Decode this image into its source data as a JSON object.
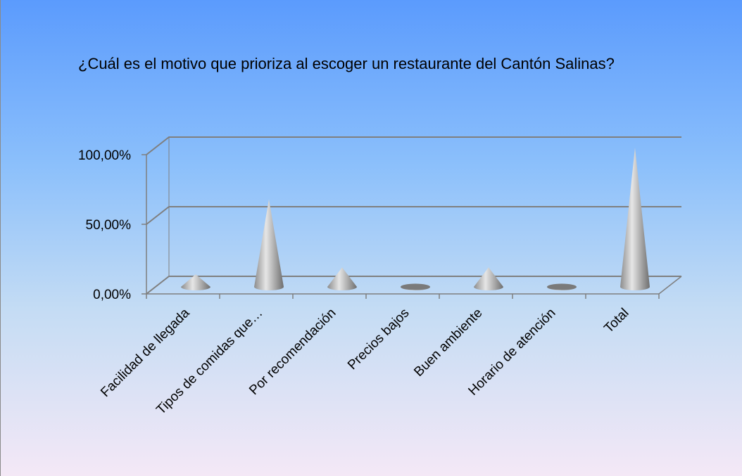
{
  "chart_data": {
    "type": "cone3d",
    "title": "¿Cuál es el motivo que prioriza al escoger un restaurante del Cantón Salinas?",
    "categories": [
      "Facilidad de llegada",
      "Tipos de comidas que…",
      "Por recomendación",
      "Precios bajos",
      "Buen ambiente",
      "Horario de atención",
      "Total"
    ],
    "values": [
      9,
      63,
      14,
      0,
      14,
      0,
      100
    ],
    "color": "#a6a6a6",
    "ylim": [
      0,
      100
    ],
    "yticks": [
      {
        "value": 0,
        "label": "0,00%"
      },
      {
        "value": 50,
        "label": "50,00%"
      },
      {
        "value": 100,
        "label": "100,00%"
      }
    ],
    "grid": true
  }
}
